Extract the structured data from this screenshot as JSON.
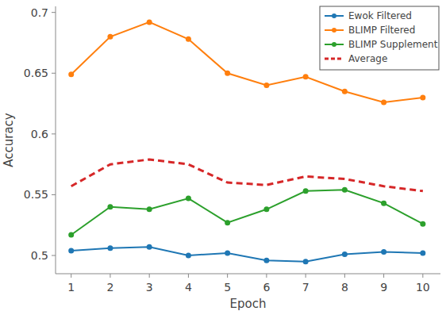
{
  "chart_data": {
    "type": "line",
    "x_label": "Epoch",
    "y_label": "Accuracy",
    "x": [
      1,
      2,
      3,
      4,
      5,
      6,
      7,
      8,
      9,
      10
    ],
    "series": [
      {
        "name": "Ewok Filtered",
        "color": "#1f77b4",
        "marker": "circle",
        "line_style": "solid",
        "values": [
          0.504,
          0.506,
          0.507,
          0.5,
          0.502,
          0.496,
          0.495,
          0.501,
          0.503,
          0.502
        ]
      },
      {
        "name": "BLIMP Filtered",
        "color": "#ff7f0e",
        "marker": "circle",
        "line_style": "solid",
        "values": [
          0.649,
          0.68,
          0.692,
          0.678,
          0.65,
          0.64,
          0.647,
          0.635,
          0.626,
          0.63
        ]
      },
      {
        "name": "BLIMP Supplement",
        "color": "#2ca02c",
        "marker": "circle",
        "line_style": "solid",
        "values": [
          0.517,
          0.54,
          0.538,
          0.547,
          0.527,
          0.538,
          0.553,
          0.554,
          0.543,
          0.526
        ]
      },
      {
        "name": "Average",
        "color": "#d62728",
        "marker": "none",
        "line_style": "dash",
        "values": [
          0.557,
          0.575,
          0.579,
          0.575,
          0.56,
          0.558,
          0.565,
          0.563,
          0.557,
          0.553
        ]
      }
    ],
    "xlim": [
      0.6,
      10.45
    ],
    "xticks": [
      1,
      2,
      3,
      4,
      5,
      6,
      7,
      8,
      9,
      10
    ],
    "ylim": [
      0.485,
      0.705
    ],
    "yticks": [
      0.5,
      0.55,
      0.6,
      0.65,
      0.7
    ],
    "grid": false,
    "legend": "upper right"
  }
}
